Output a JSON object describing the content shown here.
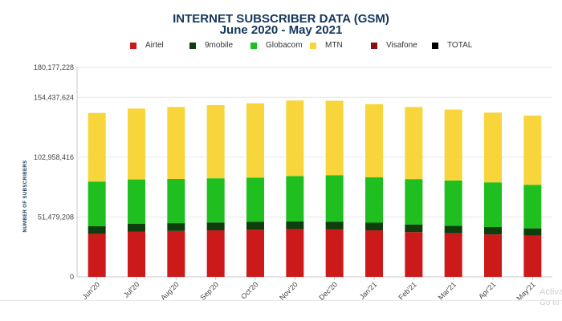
{
  "chart_data": {
    "type": "bar",
    "stacked": true,
    "title": "INTERNET SUBSCRIBER DATA (GSM)",
    "subtitle": "June 2020 - May 2021",
    "xlabel": "",
    "ylabel": "NUMBER OF SUBSCRIBERS",
    "ylim": [
      0,
      180177228
    ],
    "yticks": [
      0,
      51479208,
      102958416,
      154437624,
      180177228
    ],
    "ytick_labels": [
      "0",
      "51,479,208",
      "102,958,416",
      "154,437,624",
      "180,177,228"
    ],
    "categories": [
      "Jun'20",
      "Jul'20",
      "Aug'20",
      "Sep'20",
      "Oct'20",
      "Nov'20",
      "Dec'20",
      "Jan'21",
      "Feb'21",
      "Mar'21",
      "Apr'21",
      "May'21"
    ],
    "legend": [
      {
        "name": "Airtel",
        "color": "#cc1a1a"
      },
      {
        "name": "9mobile",
        "color": "#0e3d0e"
      },
      {
        "name": "Globacom",
        "color": "#1fbf1f"
      },
      {
        "name": "MTN",
        "color": "#f8d53a"
      },
      {
        "name": "Visafone",
        "color": "#8b0f0f"
      },
      {
        "name": "TOTAL",
        "color": "#000000"
      }
    ],
    "series": [
      {
        "name": "Airtel",
        "color": "#cc1a1a",
        "values": [
          37000000,
          39000000,
          39500000,
          40000000,
          40500000,
          41000000,
          40800000,
          40000000,
          38500000,
          37500000,
          36500000,
          35500000
        ]
      },
      {
        "name": "9mobile",
        "color": "#0e3d0e",
        "values": [
          6500000,
          6800000,
          6700000,
          6800000,
          6800000,
          6700000,
          6700000,
          6600000,
          6600000,
          6400000,
          6300000,
          6200000
        ]
      },
      {
        "name": "Globacom",
        "color": "#1fbf1f",
        "values": [
          38500000,
          38000000,
          38000000,
          38000000,
          38000000,
          39000000,
          40000000,
          39000000,
          39000000,
          39000000,
          38500000,
          37500000
        ]
      },
      {
        "name": "MTN",
        "color": "#f8d53a",
        "values": [
          59000000,
          61000000,
          62000000,
          63000000,
          64000000,
          65000000,
          64000000,
          63000000,
          62000000,
          61000000,
          60000000,
          59500000
        ]
      },
      {
        "name": "Visafone",
        "color": "#8b0f0f",
        "values": [
          0,
          0,
          0,
          0,
          0,
          0,
          0,
          0,
          0,
          0,
          0,
          0
        ]
      }
    ]
  },
  "watermark": {
    "line1": "Activate",
    "line2": "Go to Set"
  }
}
